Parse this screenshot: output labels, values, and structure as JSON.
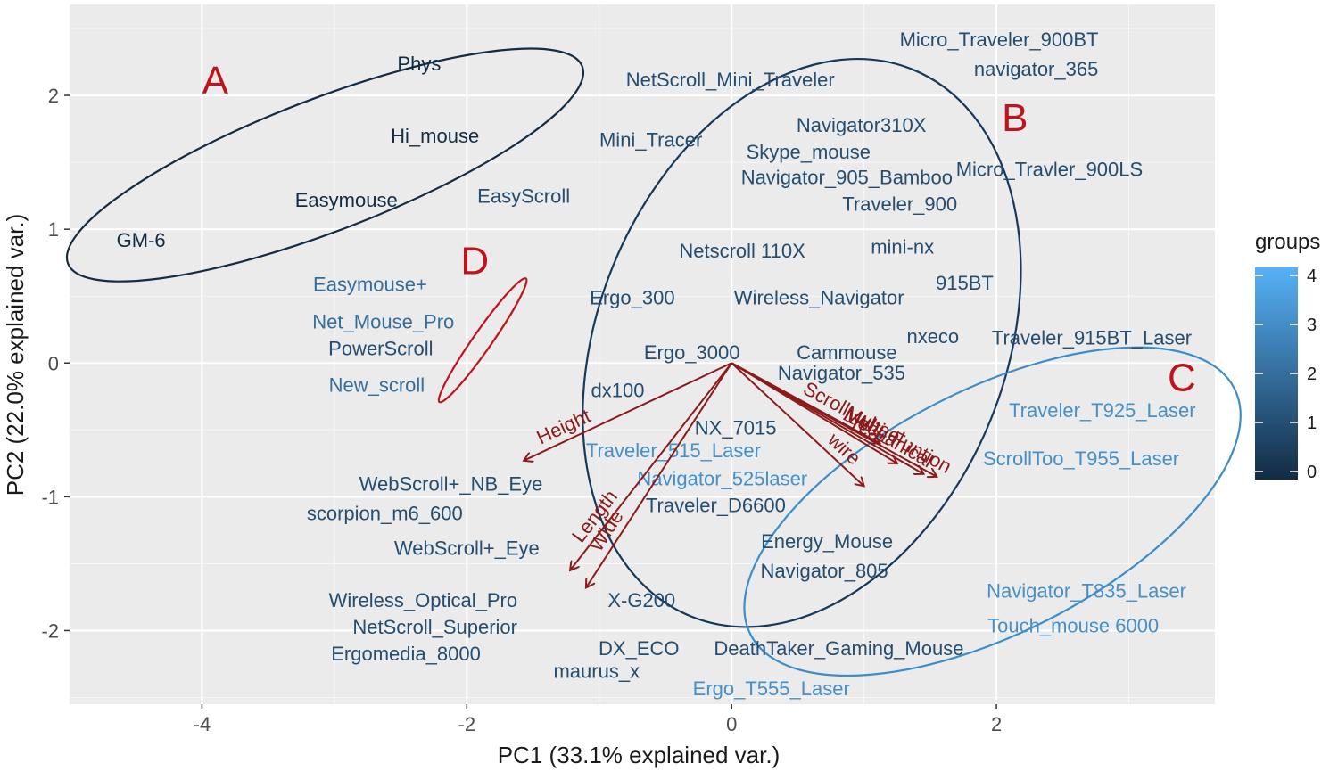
{
  "chart_data": {
    "type": "scatter",
    "xlabel": "PC1 (33.1% explained var.)",
    "ylabel": "PC2 (22.0% explained var.)",
    "xlim": [
      -5.0,
      3.65
    ],
    "ylim": [
      -2.55,
      2.68
    ],
    "xticks": [
      -4,
      -2,
      0,
      2
    ],
    "yticks": [
      -2,
      -1,
      0,
      1,
      2
    ],
    "grid": true,
    "legend": {
      "title": "groups",
      "position": "right",
      "type": "colorbar",
      "range": [
        0,
        4
      ],
      "ticks": [
        0,
        1,
        2,
        3,
        4
      ],
      "color_low": "#132b43",
      "color_high": "#56b1f7"
    },
    "points": [
      {
        "label": "Micro_Traveler_900BT",
        "x": 2.02,
        "y": 2.42,
        "group": 1
      },
      {
        "label": "navigator_365",
        "x": 2.3,
        "y": 2.2,
        "group": 1
      },
      {
        "label": "NetScroll_Mini_Traveler",
        "x": -0.01,
        "y": 2.12,
        "group": 1
      },
      {
        "label": "Phys",
        "x": -2.36,
        "y": 2.24,
        "group": 0
      },
      {
        "label": "Hi_mouse",
        "x": -2.24,
        "y": 1.7,
        "group": 0
      },
      {
        "label": "Navigator310X",
        "x": 0.98,
        "y": 1.78,
        "group": 1
      },
      {
        "label": "Mini_Tracer",
        "x": -0.61,
        "y": 1.67,
        "group": 1
      },
      {
        "label": "Skype_mouse",
        "x": 0.58,
        "y": 1.58,
        "group": 1
      },
      {
        "label": "Micro_Travler_900LS",
        "x": 2.4,
        "y": 1.45,
        "group": 1
      },
      {
        "label": "Navigator_905_Bamboo",
        "x": 0.87,
        "y": 1.39,
        "group": 1
      },
      {
        "label": "Easymouse",
        "x": -2.91,
        "y": 1.22,
        "group": 0
      },
      {
        "label": "EasyScroll",
        "x": -1.57,
        "y": 1.25,
        "group": 1
      },
      {
        "label": "Traveler_900",
        "x": 1.27,
        "y": 1.19,
        "group": 1
      },
      {
        "label": "GM-6",
        "x": -4.46,
        "y": 0.92,
        "group": 0
      },
      {
        "label": "Netscroll 110X",
        "x": 0.08,
        "y": 0.84,
        "group": 1
      },
      {
        "label": "mini-nx",
        "x": 1.29,
        "y": 0.87,
        "group": 1
      },
      {
        "label": "Easymouse+",
        "x": -2.73,
        "y": 0.59,
        "group": 2
      },
      {
        "label": "915BT",
        "x": 1.76,
        "y": 0.6,
        "group": 1
      },
      {
        "label": "Ergo_300",
        "x": -0.75,
        "y": 0.49,
        "group": 1
      },
      {
        "label": "Wireless_Navigator",
        "x": 0.66,
        "y": 0.49,
        "group": 1
      },
      {
        "label": "Net_Mouse_Pro",
        "x": -2.63,
        "y": 0.31,
        "group": 2
      },
      {
        "label": "PowerScroll",
        "x": -2.65,
        "y": 0.11,
        "group": 1
      },
      {
        "label": "nxeco",
        "x": 1.52,
        "y": 0.2,
        "group": 1
      },
      {
        "label": "Traveler_915BT_Laser",
        "x": 2.72,
        "y": 0.19,
        "group": 1
      },
      {
        "label": "Ergo_3000",
        "x": -0.3,
        "y": 0.08,
        "group": 1
      },
      {
        "label": "Cammouse",
        "x": 0.87,
        "y": 0.08,
        "group": 1
      },
      {
        "label": "Navigator_535",
        "x": 0.83,
        "y": -0.07,
        "group": 1
      },
      {
        "label": "New_scroll",
        "x": -2.68,
        "y": -0.16,
        "group": 2
      },
      {
        "label": "dx100",
        "x": -0.86,
        "y": -0.2,
        "group": 1
      },
      {
        "label": "Traveler_T925_Laser",
        "x": 2.8,
        "y": -0.35,
        "group": 3
      },
      {
        "label": "NX_7015",
        "x": 0.03,
        "y": -0.48,
        "group": 1
      },
      {
        "label": "Traveler_515_Laser",
        "x": -0.44,
        "y": -0.65,
        "group": 3
      },
      {
        "label": "ScrollToo_T955_Laser",
        "x": 2.64,
        "y": -0.71,
        "group": 3
      },
      {
        "label": "Navigator_525laser",
        "x": -0.07,
        "y": -0.86,
        "group": 3
      },
      {
        "label": "WebScroll+_NB_Eye",
        "x": -2.12,
        "y": -0.9,
        "group": 1
      },
      {
        "label": "Traveler_D6600",
        "x": -0.12,
        "y": -1.06,
        "group": 1
      },
      {
        "label": "scorpion_m6_600",
        "x": -2.62,
        "y": -1.12,
        "group": 1
      },
      {
        "label": "Energy_Mouse",
        "x": 0.72,
        "y": -1.33,
        "group": 1
      },
      {
        "label": "WebScroll+_Eye",
        "x": -2.0,
        "y": -1.38,
        "group": 1
      },
      {
        "label": "Navigator_805",
        "x": 0.7,
        "y": -1.55,
        "group": 1
      },
      {
        "label": "Navigator_T835_Laser",
        "x": 2.68,
        "y": -1.7,
        "group": 3
      },
      {
        "label": "X-G200",
        "x": -0.68,
        "y": -1.77,
        "group": 1
      },
      {
        "label": "Wireless_Optical_Pro",
        "x": -2.33,
        "y": -1.77,
        "group": 1
      },
      {
        "label": "Touch_mouse 6000",
        "x": 2.58,
        "y": -1.96,
        "group": 3
      },
      {
        "label": "NetScroll_Superior",
        "x": -2.24,
        "y": -1.97,
        "group": 1
      },
      {
        "label": "DX_ECO",
        "x": -0.7,
        "y": -2.13,
        "group": 1
      },
      {
        "label": "DeathTaker_Gaming_Mouse",
        "x": 0.81,
        "y": -2.13,
        "group": 1
      },
      {
        "label": "Ergomedia_8000",
        "x": -2.46,
        "y": -2.17,
        "group": 1
      },
      {
        "label": "maurus_x",
        "x": -1.02,
        "y": -2.3,
        "group": 1
      },
      {
        "label": "Ergo_T555_Laser",
        "x": 0.3,
        "y": -2.43,
        "group": 3
      }
    ],
    "vectors": [
      {
        "label": "Height",
        "x": -1.57,
        "y": -0.73
      },
      {
        "label": "Length",
        "x": -1.22,
        "y": -1.55
      },
      {
        "label": "Wide",
        "x": -1.1,
        "y": -1.68
      },
      {
        "label": "wire",
        "x": 1.0,
        "y": -0.92
      },
      {
        "label": "Scroll_wheel",
        "x": 1.12,
        "y": -0.6
      },
      {
        "label": "Year",
        "x": 1.25,
        "y": -0.75
      },
      {
        "label": "Mechanical",
        "x": 1.45,
        "y": -0.83
      },
      {
        "label": "Multi_Funtion",
        "x": 1.55,
        "y": -0.85
      }
    ],
    "vector_origin": [
      0,
      0
    ],
    "ellipses": [
      {
        "label": "A",
        "label_x": -3.9,
        "label_y": 2.12,
        "color": "#132b43",
        "cx": -3.07,
        "cy": 1.48,
        "a": 2.08,
        "b": 0.5,
        "angle_deg": 21
      },
      {
        "label": "B",
        "label_x": 2.14,
        "label_y": 1.84,
        "color": "#16395b",
        "cx": 0.53,
        "cy": 0.15,
        "a": 2.23,
        "b": 1.54,
        "angle_deg": 68
      },
      {
        "label": "C",
        "label_x": 3.4,
        "label_y": -0.1,
        "color": "#3d8dc9",
        "cx": 1.97,
        "cy": -1.11,
        "a": 2.05,
        "b": 0.92,
        "angle_deg": 27
      },
      {
        "label": "D",
        "label_x": -1.94,
        "label_y": 0.77,
        "color": "#c0141c",
        "cx": -1.88,
        "cy": 0.17,
        "a": 0.57,
        "b": 0.07,
        "angle_deg": 55
      }
    ]
  }
}
